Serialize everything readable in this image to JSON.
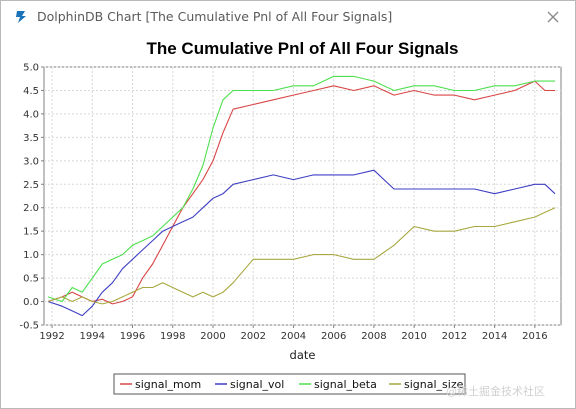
{
  "window": {
    "title": "DolphinDB Chart [The Cumulative Pnl of All Four Signals]",
    "app_icon": "dolphindb-logo-icon",
    "close_icon": "close-icon",
    "accent": "#1a73b8"
  },
  "watermark": "@稀土掘金技术社区",
  "chart_data": {
    "type": "line",
    "title": "The Cumulative Pnl of All Four Signals",
    "xlabel": "date",
    "ylabel": "",
    "xlim": [
      1991.6,
      2017.3
    ],
    "ylim": [
      -0.5,
      5.0
    ],
    "xticks": [
      "1992",
      "1994",
      "1996",
      "1998",
      "2000",
      "2002",
      "2004",
      "2006",
      "2008",
      "2010",
      "2012",
      "2014",
      "2016"
    ],
    "yticks": [
      "-0.5",
      "0.0",
      "0.5",
      "1.0",
      "1.5",
      "2.0",
      "2.5",
      "3.0",
      "3.5",
      "4.0",
      "4.5",
      "5.0"
    ],
    "grid": true,
    "legend": "bottom",
    "series": [
      {
        "name": "signal_mom",
        "color": "#d94545",
        "x": [
          1991.8,
          1992.5,
          1993,
          1993.5,
          1994,
          1994.5,
          1995,
          1995.5,
          1996,
          1996.5,
          1997,
          1997.5,
          1998,
          1998.5,
          1999,
          1999.5,
          2000,
          2000.5,
          2001,
          2002,
          2003,
          2004,
          2005,
          2006,
          2007,
          2008,
          2009,
          2010,
          2011,
          2012,
          2013,
          2014,
          2015,
          2015.5,
          2016,
          2016.5,
          2017
        ],
        "values": [
          0.0,
          0.1,
          0.2,
          0.1,
          0.0,
          0.05,
          -0.05,
          0.0,
          0.1,
          0.5,
          0.8,
          1.2,
          1.6,
          2.0,
          2.3,
          2.6,
          3.0,
          3.6,
          4.1,
          4.2,
          4.3,
          4.4,
          4.5,
          4.6,
          4.5,
          4.6,
          4.4,
          4.5,
          4.4,
          4.4,
          4.3,
          4.4,
          4.5,
          4.6,
          4.7,
          4.5,
          4.5
        ]
      },
      {
        "name": "signal_vol",
        "color": "#3e3ec4",
        "x": [
          1991.8,
          1992.5,
          1993,
          1993.5,
          1994,
          1994.5,
          1995,
          1995.5,
          1996,
          1996.5,
          1997,
          1997.5,
          1998,
          1998.5,
          1999,
          1999.5,
          2000,
          2000.5,
          2001,
          2002,
          2003,
          2004,
          2005,
          2006,
          2007,
          2008,
          2009,
          2010,
          2011,
          2012,
          2013,
          2014,
          2015,
          2016,
          2016.5,
          2017
        ],
        "values": [
          0.0,
          -0.1,
          -0.2,
          -0.3,
          -0.1,
          0.2,
          0.4,
          0.7,
          0.9,
          1.1,
          1.3,
          1.5,
          1.6,
          1.7,
          1.8,
          2.0,
          2.2,
          2.3,
          2.5,
          2.6,
          2.7,
          2.6,
          2.7,
          2.7,
          2.7,
          2.8,
          2.4,
          2.4,
          2.4,
          2.4,
          2.4,
          2.3,
          2.4,
          2.5,
          2.5,
          2.3
        ]
      },
      {
        "name": "signal_beta",
        "color": "#4de04d",
        "x": [
          1991.8,
          1992.5,
          1993,
          1993.5,
          1994,
          1994.5,
          1995,
          1995.5,
          1996,
          1996.5,
          1997,
          1997.5,
          1998,
          1998.5,
          1999,
          1999.5,
          2000,
          2000.5,
          2001,
          2002,
          2003,
          2004,
          2005,
          2006,
          2007,
          2008,
          2009,
          2010,
          2011,
          2012,
          2013,
          2014,
          2015,
          2016,
          2016.5,
          2017
        ],
        "values": [
          0.1,
          0.0,
          0.3,
          0.2,
          0.5,
          0.8,
          0.9,
          1.0,
          1.2,
          1.3,
          1.4,
          1.6,
          1.8,
          2.0,
          2.4,
          2.9,
          3.7,
          4.3,
          4.5,
          4.5,
          4.5,
          4.6,
          4.6,
          4.8,
          4.8,
          4.7,
          4.5,
          4.6,
          4.6,
          4.5,
          4.5,
          4.6,
          4.6,
          4.7,
          4.7,
          4.7
        ]
      },
      {
        "name": "signal_size",
        "color": "#a8a840",
        "x": [
          1991.8,
          1992.5,
          1993,
          1993.5,
          1994,
          1994.5,
          1995,
          1995.5,
          1996,
          1996.5,
          1997,
          1997.5,
          1998,
          1998.5,
          1999,
          1999.5,
          2000,
          2000.5,
          2001,
          2002,
          2003,
          2004,
          2005,
          2006,
          2007,
          2008,
          2009,
          2010,
          2011,
          2012,
          2013,
          2014,
          2015,
          2016,
          2016.5,
          2017
        ],
        "values": [
          0.0,
          0.1,
          0.0,
          0.1,
          0.0,
          -0.05,
          0.0,
          0.1,
          0.2,
          0.3,
          0.3,
          0.4,
          0.3,
          0.2,
          0.1,
          0.2,
          0.1,
          0.2,
          0.4,
          0.9,
          0.9,
          0.9,
          1.0,
          1.0,
          0.9,
          0.9,
          1.2,
          1.6,
          1.5,
          1.5,
          1.6,
          1.6,
          1.7,
          1.8,
          1.9,
          2.0
        ]
      }
    ]
  }
}
